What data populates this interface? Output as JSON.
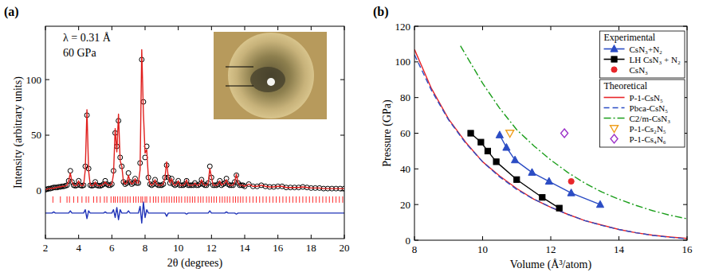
{
  "chart_data": [
    {
      "type": "line",
      "panel": "(a)",
      "x_label": "2θ (degrees)",
      "y_label": "Intensity (arbitrary units)",
      "annotations": [
        "λ = 0.31 Å",
        "60 GPa"
      ],
      "xlim": [
        2,
        20
      ],
      "xticks": [
        2,
        4,
        6,
        8,
        10,
        12,
        14,
        16,
        18,
        20
      ],
      "ylim": [
        -43,
        148
      ],
      "yticks": [
        0,
        50,
        100
      ],
      "x": [
        2.0,
        2.1,
        2.2,
        2.3,
        2.4,
        2.5,
        2.6,
        2.7,
        2.8,
        2.9,
        3.0,
        3.1,
        3.2,
        3.3,
        3.4,
        3.5,
        3.6,
        3.7,
        3.8,
        3.9,
        4.0,
        4.1,
        4.2,
        4.3,
        4.4,
        4.5,
        4.6,
        4.7,
        4.8,
        4.9,
        5.0,
        5.1,
        5.2,
        5.3,
        5.4,
        5.5,
        5.6,
        5.7,
        5.8,
        5.9,
        6.0,
        6.1,
        6.2,
        6.3,
        6.4,
        6.5,
        6.6,
        6.7,
        6.8,
        6.9,
        7.0,
        7.1,
        7.2,
        7.3,
        7.4,
        7.5,
        7.6,
        7.7,
        7.8,
        7.9,
        8.0,
        8.1,
        8.2,
        8.3,
        8.4,
        8.5,
        8.6,
        8.7,
        8.8,
        8.9,
        9.0,
        9.1,
        9.2,
        9.3,
        9.4,
        9.5,
        9.6,
        9.7,
        9.8,
        9.9,
        10.0,
        10.1,
        10.2,
        10.3,
        10.4,
        10.5,
        10.6,
        10.7,
        10.8,
        10.9,
        11.0,
        11.1,
        11.2,
        11.3,
        11.4,
        11.5,
        11.6,
        11.7,
        11.8,
        11.9,
        12.0,
        12.1,
        12.2,
        12.3,
        12.4,
        12.5,
        12.6,
        12.7,
        12.8,
        12.9,
        13.0,
        13.1,
        13.2,
        13.3,
        13.4,
        13.5,
        13.6,
        13.7,
        13.8,
        13.9,
        14.0,
        14.25,
        14.5,
        14.75,
        15.0,
        15.25,
        15.5,
        15.75,
        16.0,
        16.25,
        16.5,
        16.75,
        17.0,
        17.25,
        17.5,
        17.75,
        18.0,
        18.25,
        18.5,
        18.75,
        19.0,
        19.25,
        19.5,
        19.75,
        20.0
      ],
      "series": [
        {
          "type": "scatter",
          "marker": "open-circle",
          "color": "#000000",
          "values": [
            1,
            1.5,
            2,
            2,
            2.5,
            3,
            3,
            3,
            3.5,
            3.5,
            4,
            4,
            4.5,
            5,
            9,
            18,
            8,
            5,
            4.5,
            5,
            9,
            5,
            4.5,
            5,
            22,
            68,
            20,
            5,
            4.5,
            5,
            8,
            5,
            4.5,
            4.5,
            5,
            6,
            9,
            6,
            5,
            5,
            6,
            18,
            52,
            40,
            63,
            30,
            22,
            8,
            6,
            7,
            16,
            8,
            6,
            7,
            11,
            7,
            7,
            25,
            118,
            80,
            30,
            40,
            12,
            6,
            5,
            6,
            10,
            6,
            5,
            5,
            5,
            6,
            12,
            23,
            12,
            7,
            11,
            6,
            5,
            6,
            9,
            5,
            5,
            5,
            6,
            9,
            5,
            5,
            5,
            5,
            7,
            5,
            5,
            6,
            10,
            6,
            5,
            5,
            7,
            22,
            12,
            5,
            5,
            5,
            6,
            9,
            5,
            6,
            7,
            11,
            6,
            5,
            5,
            5,
            8,
            14,
            7,
            5,
            5,
            5,
            4,
            6,
            4,
            4,
            5,
            4,
            3.5,
            3.5,
            4,
            4,
            3,
            3,
            3,
            3,
            3.5,
            3,
            2.5,
            2.5,
            2.5,
            2,
            2,
            2,
            2,
            2,
            2
          ]
        },
        {
          "type": "line",
          "line_style": "solid",
          "color": "#e0201e",
          "values": [
            1,
            1.5,
            2,
            2,
            2.5,
            2,
            3,
            3,
            3.5,
            3.5,
            4,
            4,
            4.5,
            5,
            9,
            16,
            8,
            5,
            4.5,
            5,
            9,
            5,
            4.5,
            5,
            19,
            73,
            18,
            5,
            4.5,
            5,
            8,
            5,
            4.5,
            4.5,
            5,
            6,
            8,
            6,
            5,
            5,
            6,
            15,
            56,
            35,
            69,
            27,
            22,
            8,
            6,
            7,
            14,
            8,
            6,
            7,
            11,
            7,
            7,
            19,
            127,
            70,
            34,
            37,
            12,
            6,
            5,
            6,
            10,
            6,
            5,
            5,
            5,
            6,
            12,
            26,
            12,
            7,
            11,
            6,
            5,
            6,
            9,
            5,
            5,
            5,
            6,
            10,
            5,
            5,
            5,
            5,
            7,
            5,
            5,
            6,
            10,
            6,
            5,
            5,
            7,
            20,
            12,
            5,
            5,
            5,
            6,
            9,
            5,
            6,
            7,
            10,
            6,
            5,
            5,
            5,
            8,
            15,
            7,
            5,
            5,
            5,
            4,
            6,
            4,
            4,
            5,
            4,
            3.5,
            3.5,
            4,
            4,
            3,
            3,
            3,
            3,
            3.5,
            3,
            2.5,
            2.5,
            2.5,
            2,
            2,
            2,
            2,
            2,
            2
          ]
        },
        {
          "type": "line",
          "line_style": "solid",
          "color": "#1f33b8",
          "values": [
            -20,
            -20,
            -20,
            -20,
            -20,
            -19,
            -20,
            -20,
            -20,
            -20,
            -20,
            -20,
            -20,
            -20,
            -20,
            -18,
            -20,
            -20,
            -20,
            -20,
            -20,
            -20,
            -20,
            -20,
            -17,
            -25,
            -18,
            -20,
            -20,
            -20,
            -20,
            -20,
            -20,
            -20,
            -20,
            -20,
            -19,
            -20,
            -20,
            -20,
            -20,
            -17,
            -24,
            -15,
            -26,
            -17,
            -20,
            -20,
            -20,
            -20,
            -18,
            -20,
            -20,
            -20,
            -20,
            -20,
            -20,
            -14,
            -29,
            -10,
            -24,
            -17,
            -20,
            -20,
            -20,
            -20,
            -20,
            -20,
            -20,
            -20,
            -20,
            -20,
            -20,
            -23,
            -20,
            -20,
            -20,
            -20,
            -20,
            -20,
            -20,
            -20,
            -20,
            -20,
            -20,
            -21,
            -20,
            -20,
            -20,
            -20,
            -20,
            -20,
            -20,
            -20,
            -20,
            -20,
            -20,
            -20,
            -20,
            -18,
            -20,
            -20,
            -20,
            -20,
            -20,
            -20,
            -20,
            -20,
            -20,
            -19,
            -20,
            -20,
            -20,
            -20,
            -20,
            -21,
            -20,
            -20,
            -20,
            -20,
            -20,
            -20,
            -20,
            -20,
            -20,
            -20,
            -20,
            -20,
            -20,
            -20,
            -20,
            -20,
            -20,
            -20,
            -20,
            -20,
            -20,
            -20,
            -20,
            -20,
            -20,
            -20,
            -20,
            -20,
            -20
          ]
        },
        {
          "type": "tick",
          "color": "#ff2a2a",
          "x": [
            2.45,
            2.9,
            3.3,
            3.45,
            3.7,
            3.95,
            4.2,
            4.45,
            4.6,
            4.9,
            5.1,
            5.3,
            5.55,
            5.7,
            5.95,
            6.1,
            6.2,
            6.35,
            6.5,
            6.65,
            6.8,
            6.95,
            7.1,
            7.3,
            7.45,
            7.6,
            7.75,
            7.85,
            8.0,
            8.1,
            8.3,
            8.5,
            8.65,
            8.8,
            9.0,
            9.15,
            9.3,
            9.45,
            9.6,
            9.75,
            9.9,
            10.05,
            10.2,
            10.4,
            10.55,
            10.7,
            10.85,
            11.0,
            11.2,
            11.35,
            11.5,
            11.7,
            11.85,
            12.0,
            12.15,
            12.3,
            12.5,
            12.65,
            12.8,
            12.95,
            13.1,
            13.3,
            13.45,
            13.6,
            13.75,
            13.9,
            14.1,
            14.3,
            14.5,
            14.7,
            14.9,
            15.1,
            15.3,
            15.5,
            15.7,
            15.9,
            16.1,
            16.3,
            16.5,
            16.7,
            16.9,
            17.1,
            17.3,
            17.5,
            17.7,
            17.9,
            18.1,
            18.3,
            18.5,
            18.7,
            18.9,
            19.1,
            19.3,
            19.5,
            19.7,
            19.9
          ]
        }
      ]
    },
    {
      "type": "line",
      "panel": "(b)",
      "x_label": "Volume (Å³/atom)",
      "y_label": "Pressure (GPa)",
      "xlim": [
        8,
        16
      ],
      "xticks": [
        8,
        10,
        12,
        14,
        16
      ],
      "ylim": [
        0,
        120
      ],
      "yticks": [
        0,
        20,
        40,
        60,
        80,
        100,
        120
      ],
      "legend": "upper right",
      "legend_groups": [
        "Experimental",
        "Theoretical"
      ],
      "series": [
        {
          "name": "CsN₃+N₂",
          "group": "Experimental",
          "type": "line",
          "marker": "triangle",
          "line_style": "solid",
          "color": "#2b4cc4",
          "x": [
            13.45,
            12.6,
            11.95,
            11.45,
            10.95,
            10.7,
            10.5
          ],
          "values": [
            20,
            26.5,
            33,
            38,
            45,
            52,
            59
          ]
        },
        {
          "name": "LH CsN₃ + N₂",
          "group": "Experimental",
          "type": "line",
          "marker": "square",
          "line_style": "solid",
          "color": "#000000",
          "x": [
            12.25,
            11.75,
            11.0,
            10.4,
            10.15,
            9.95,
            9.65
          ],
          "values": [
            18,
            24,
            34,
            44,
            50,
            55,
            60
          ]
        },
        {
          "name": "CsN₃",
          "group": "Experimental",
          "type": "scatter",
          "marker": "circle",
          "color": "#e8262a",
          "x": [
            12.6
          ],
          "values": [
            33
          ]
        },
        {
          "name": "P-1-CsN₅",
          "group": "Theoretical",
          "type": "line",
          "line_style": "solid",
          "color": "#e8262a",
          "x": [
            8,
            8.5,
            9,
            9.5,
            10,
            10.5,
            11,
            11.5,
            12,
            12.5,
            13,
            13.5,
            14,
            14.5,
            15,
            15.5,
            16
          ],
          "values": [
            107,
            85,
            68,
            55,
            44,
            36,
            29,
            23,
            18.5,
            14.5,
            11,
            8.5,
            6,
            4.2,
            2.8,
            1.8,
            1
          ]
        },
        {
          "name": "Pbca-CsN₅",
          "group": "Theoretical",
          "type": "line",
          "line_style": "dashed",
          "color": "#2b4cc4",
          "x": [
            8,
            8.5,
            9,
            9.5,
            10,
            10.5,
            11,
            11.5,
            12,
            12.5,
            13,
            13.5,
            14,
            14.5,
            15,
            15.5,
            16
          ],
          "values": [
            104,
            84,
            67.5,
            54.5,
            44,
            35.5,
            28.5,
            23,
            18.5,
            14.5,
            11,
            8.3,
            6,
            4.2,
            2.7,
            1.6,
            0.8
          ]
        },
        {
          "name": "C2/m-CsN₃",
          "group": "Theoretical",
          "type": "line",
          "line_style": "dashdot",
          "color": "#1b9e1b",
          "x": [
            9.35,
            10,
            10.5,
            11,
            11.5,
            12,
            12.5,
            13,
            13.5,
            14,
            14.5,
            15,
            15.5,
            16
          ],
          "values": [
            109,
            88,
            74,
            62,
            53,
            45,
            38,
            32,
            27,
            23,
            19.5,
            16.5,
            14,
            12
          ]
        },
        {
          "name": "P-1-Cs₂N₅",
          "group": "Theoretical",
          "type": "scatter",
          "marker": "open-triangle-down",
          "color": "#f0a020",
          "x": [
            10.8
          ],
          "values": [
            60
          ]
        },
        {
          "name": "P-1-Cs₄N₆",
          "group": "Theoretical",
          "type": "scatter",
          "marker": "open-diamond",
          "color": "#9b30c8",
          "x": [
            12.4
          ],
          "values": [
            60
          ]
        }
      ]
    }
  ]
}
